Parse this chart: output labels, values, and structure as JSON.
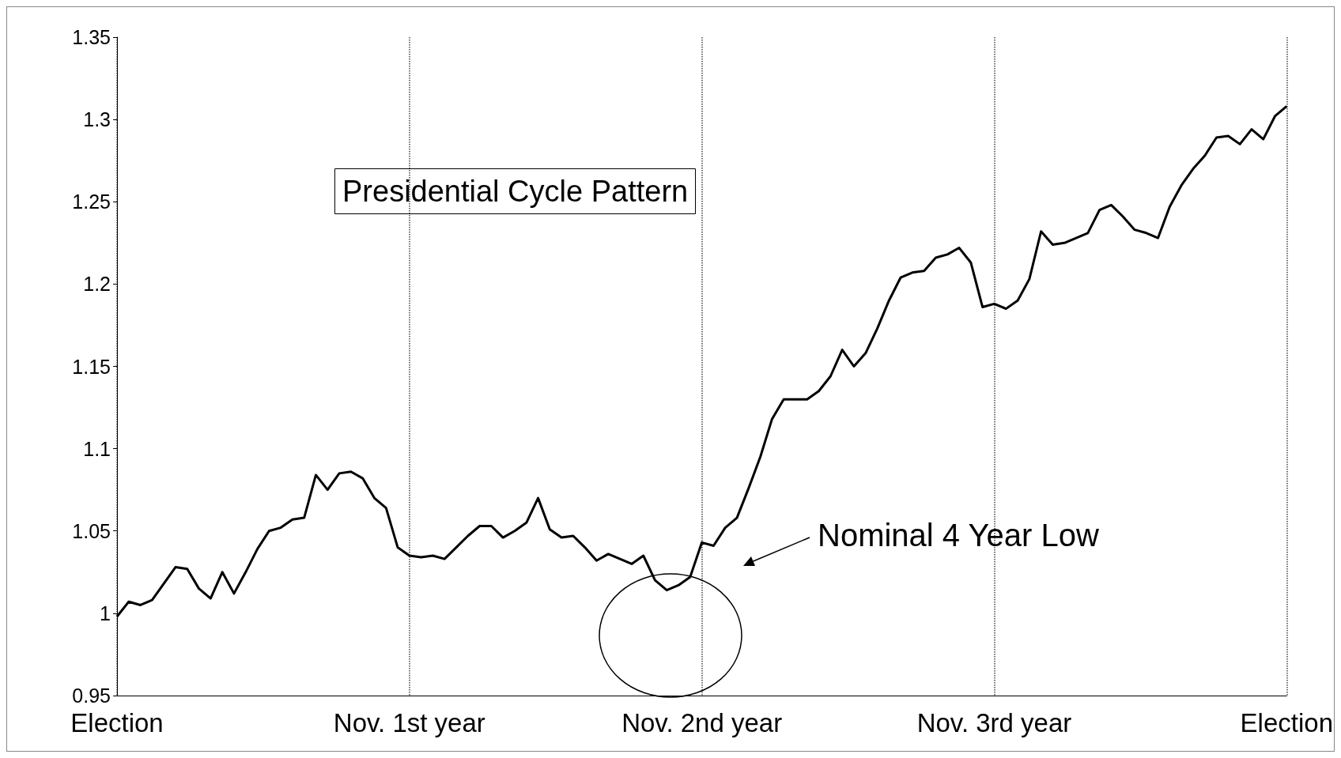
{
  "chart_data": {
    "type": "line",
    "title": "Presidential Cycle Pattern",
    "categories": [
      "Election",
      null,
      null,
      null,
      null,
      null,
      null,
      null,
      null,
      null,
      null,
      null,
      null,
      null,
      null,
      null,
      null,
      null,
      null,
      null,
      null,
      null,
      null,
      null,
      null,
      "Nov. 1st year",
      null,
      null,
      null,
      null,
      null,
      null,
      null,
      null,
      null,
      null,
      null,
      null,
      null,
      null,
      null,
      null,
      null,
      null,
      null,
      null,
      null,
      null,
      null,
      null,
      "Nov. 2nd year",
      null,
      null,
      null,
      null,
      null,
      null,
      null,
      null,
      null,
      null,
      null,
      null,
      null,
      null,
      null,
      null,
      null,
      null,
      null,
      null,
      null,
      null,
      null,
      null,
      "Nov. 3rd year",
      null,
      null,
      null,
      null,
      null,
      null,
      null,
      null,
      null,
      null,
      null,
      null,
      null,
      null,
      null,
      null,
      null,
      null,
      null,
      null,
      null,
      null,
      null,
      null,
      "Election"
    ],
    "series": [
      {
        "color": "#000000",
        "values": [
          0.998,
          1.007,
          1.005,
          1.008,
          1.018,
          1.028,
          1.027,
          1.015,
          1.009,
          1.025,
          1.012,
          1.025,
          1.039,
          1.05,
          1.052,
          1.057,
          1.058,
          1.084,
          1.075,
          1.085,
          1.086,
          1.082,
          1.07,
          1.064,
          1.04,
          1.035,
          1.034,
          1.035,
          1.033,
          1.04,
          1.047,
          1.053,
          1.053,
          1.046,
          1.05,
          1.055,
          1.07,
          1.051,
          1.046,
          1.047,
          1.04,
          1.032,
          1.036,
          1.033,
          1.03,
          1.035,
          1.02,
          1.014,
          1.017,
          1.022,
          1.043,
          1.041,
          1.052,
          1.058,
          1.076,
          1.095,
          1.118,
          1.13,
          1.13,
          1.13,
          1.135,
          1.144,
          1.16,
          1.15,
          1.158,
          1.173,
          1.19,
          1.204,
          1.207,
          1.208,
          1.216,
          1.218,
          1.222,
          1.213,
          1.186,
          1.188,
          1.185,
          1.19,
          1.203,
          1.232,
          1.224,
          1.225,
          1.228,
          1.231,
          1.245,
          1.248,
          1.241,
          1.233,
          1.231,
          1.228,
          1.247,
          1.26,
          1.27,
          1.278,
          1.289,
          1.29,
          1.285,
          1.294,
          1.288,
          1.302,
          1.308
        ]
      }
    ],
    "ylim": [
      0.95,
      1.35
    ],
    "yticks": [
      0.95,
      1,
      1.05,
      1.1,
      1.15,
      1.2,
      1.25,
      1.3,
      1.35
    ],
    "grid": "x",
    "marker": "none",
    "line_style": "solid",
    "annotations": [
      "Nominal 4 Year Low"
    ]
  }
}
